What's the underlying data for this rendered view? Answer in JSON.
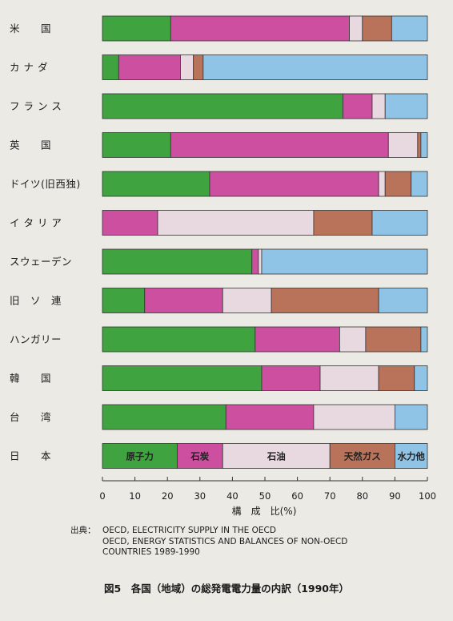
{
  "chart_data": {
    "type": "bar",
    "orientation": "horizontal",
    "stacked": true,
    "categories": [
      "米　　国",
      "カ ナ ダ",
      "フ ラ ン ス",
      "英　　国",
      "ドイツ(旧西独)",
      "イ タ リ ア",
      "スウェーデン",
      "旧　ソ　連",
      "ハンガリー",
      "韓　　国",
      "台　　湾",
      "日　　本"
    ],
    "series": [
      {
        "name": "原子力",
        "color": "#3fa33f",
        "values": [
          21,
          5,
          74,
          21,
          33,
          0,
          46,
          13,
          47,
          49,
          38,
          23
        ]
      },
      {
        "name": "石炭",
        "color": "#cc4fa0",
        "values": [
          55,
          19,
          9,
          67,
          52,
          17,
          2,
          24,
          26,
          18,
          27,
          14
        ]
      },
      {
        "name": "石油",
        "color": "#e8d8e0",
        "values": [
          4,
          4,
          4,
          9,
          2,
          48,
          1,
          15,
          8,
          18,
          25,
          33
        ]
      },
      {
        "name": "天然ガス",
        "color": "#b8735a",
        "values": [
          9,
          3,
          0,
          1,
          8,
          18,
          0,
          33,
          17,
          11,
          0,
          20
        ]
      },
      {
        "name": "水力他",
        "color": "#8fc4e6",
        "values": [
          11,
          69,
          13,
          2,
          5,
          17,
          51,
          15,
          2,
          4,
          10,
          10
        ]
      }
    ],
    "xlim": [
      0,
      100
    ],
    "xticks": [
      0,
      10,
      20,
      30,
      40,
      50,
      60,
      70,
      80,
      90,
      100
    ],
    "xlabel": "構　成　比(%)",
    "legend": "inline labels on last bar (日本)",
    "grid": false
  },
  "source": {
    "label": "出典：",
    "lines": [
      "OECD, ELECTRICITY SUPPLY IN THE OECD",
      "OECD, ENERGY STATISTICS AND BALANCES OF NON-OECD",
      "COUNTRIES 1989-1990"
    ]
  },
  "caption": "図5　各国（地域）の総発電電力量の内訳（1990年）"
}
